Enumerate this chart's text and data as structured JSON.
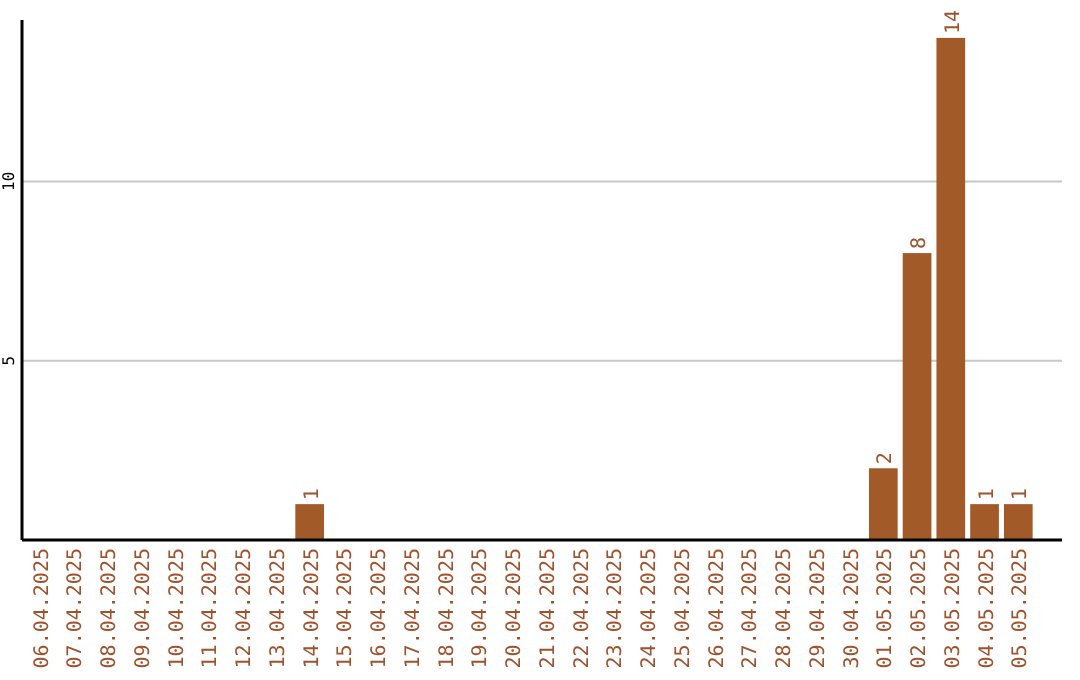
{
  "chart_data": {
    "type": "bar",
    "categories": [
      "06.04.2025",
      "07.04.2025",
      "08.04.2025",
      "09.04.2025",
      "10.04.2025",
      "11.04.2025",
      "12.04.2025",
      "13.04.2025",
      "14.04.2025",
      "15.04.2025",
      "16.04.2025",
      "17.04.2025",
      "18.04.2025",
      "19.04.2025",
      "20.04.2025",
      "21.04.2025",
      "22.04.2025",
      "23.04.2025",
      "24.04.2025",
      "25.04.2025",
      "26.04.2025",
      "27.04.2025",
      "28.04.2025",
      "29.04.2025",
      "30.04.2025",
      "01.05.2025",
      "02.05.2025",
      "03.05.2025",
      "04.05.2025",
      "05.05.2025"
    ],
    "values": [
      0,
      0,
      0,
      0,
      0,
      0,
      0,
      0,
      1,
      0,
      0,
      0,
      0,
      0,
      0,
      0,
      0,
      0,
      0,
      0,
      0,
      0,
      0,
      0,
      0,
      2,
      8,
      14,
      1,
      1
    ],
    "value_labels": [
      null,
      null,
      null,
      null,
      null,
      null,
      null,
      null,
      "1",
      null,
      null,
      null,
      null,
      null,
      null,
      null,
      null,
      null,
      null,
      null,
      null,
      null,
      null,
      null,
      null,
      "2",
      "8",
      "14",
      "1",
      "1"
    ],
    "color": "#a15a28",
    "ylim": [
      0,
      14.5
    ],
    "yticks": [
      5,
      10
    ],
    "grid": "y"
  }
}
